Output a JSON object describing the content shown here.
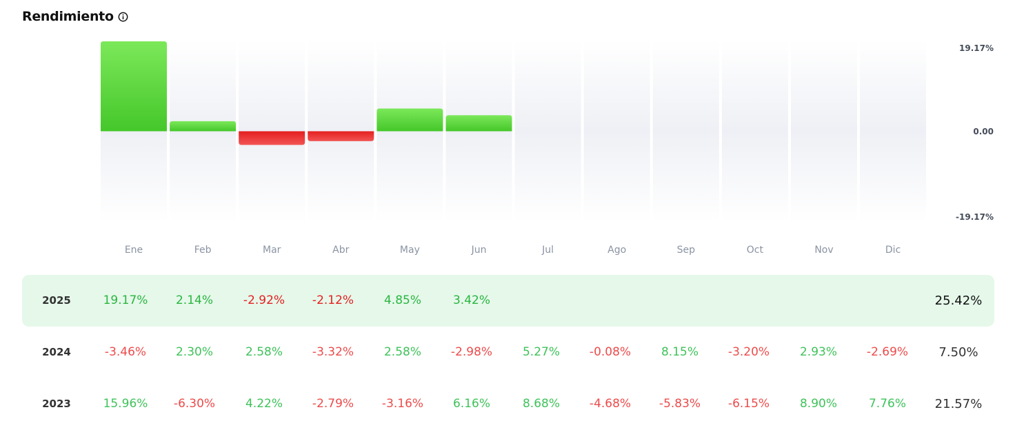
{
  "header": {
    "title": "Rendimiento",
    "info_icon": "info-icon"
  },
  "colors": {
    "positive": "#4fd04a",
    "negative": "#e52b2b",
    "highlight_row": "#e5f8ea"
  },
  "chart_data": {
    "type": "bar",
    "categories": [
      "Ene",
      "Feb",
      "Mar",
      "Abr",
      "May",
      "Jun",
      "Jul",
      "Ago",
      "Sep",
      "Oct",
      "Nov",
      "Dic"
    ],
    "values": [
      19.17,
      2.14,
      -2.92,
      -2.12,
      4.85,
      3.42,
      null,
      null,
      null,
      null,
      null,
      null
    ],
    "ylim": [
      -19.17,
      19.17
    ],
    "ytick_labels": [
      "19.17%",
      "0.00",
      "-19.17%"
    ],
    "title": "",
    "xlabel": "",
    "ylabel": ""
  },
  "table": {
    "rows": [
      {
        "year": "2025",
        "values": [
          "19.17%",
          "2.14%",
          "-2.92%",
          "-2.12%",
          "4.85%",
          "3.42%",
          "",
          "",
          "",
          "",
          "",
          ""
        ],
        "total": "25.42%",
        "highlighted": true
      },
      {
        "year": "2024",
        "values": [
          "-3.46%",
          "2.30%",
          "2.58%",
          "-3.32%",
          "2.58%",
          "-2.98%",
          "5.27%",
          "-0.08%",
          "8.15%",
          "-3.20%",
          "2.93%",
          "-2.69%"
        ],
        "total": "7.50%",
        "highlighted": false
      },
      {
        "year": "2023",
        "values": [
          "15.96%",
          "-6.30%",
          "4.22%",
          "-2.79%",
          "-3.16%",
          "6.16%",
          "8.68%",
          "-4.68%",
          "-5.83%",
          "-6.15%",
          "8.90%",
          "7.76%"
        ],
        "total": "21.57%",
        "highlighted": false
      }
    ]
  }
}
